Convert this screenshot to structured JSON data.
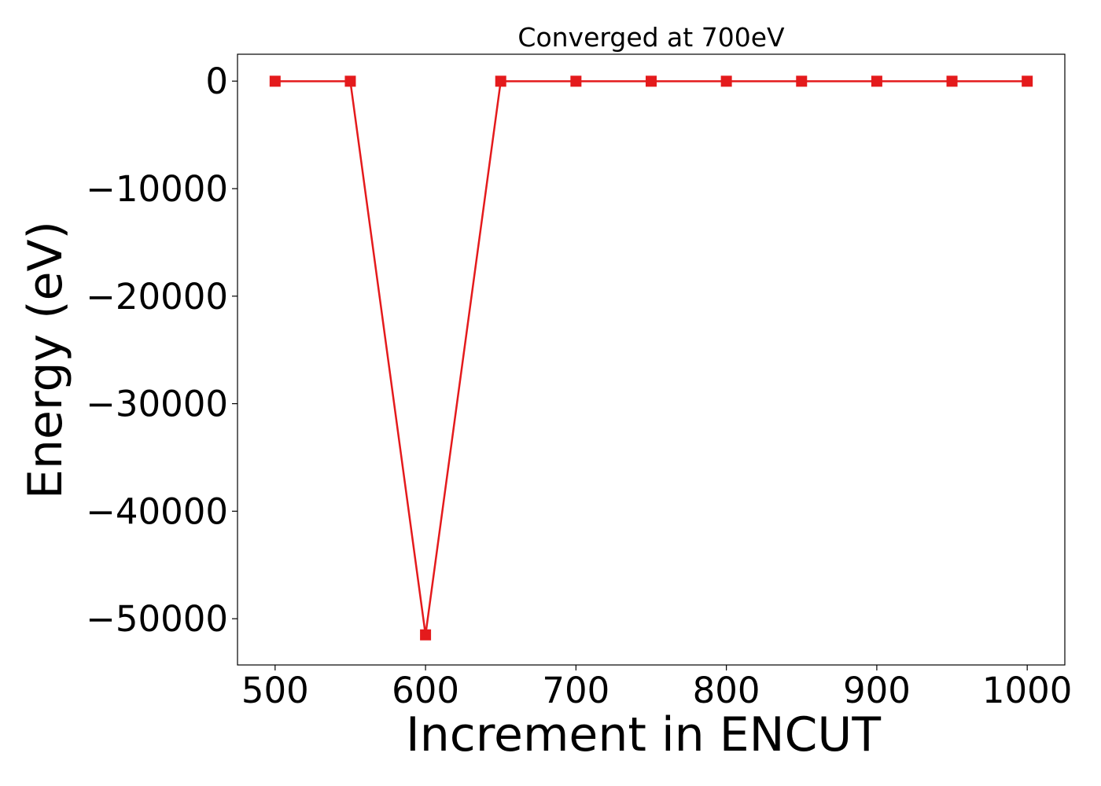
{
  "chart_data": {
    "type": "line",
    "title": "Converged at 700eV",
    "xlabel": "Increment in ENCUT",
    "ylabel": "Energy (eV)",
    "xlim": [
      475,
      1025
    ],
    "ylim": [
      -54300,
      2500
    ],
    "xticks": [
      500,
      600,
      700,
      800,
      900,
      1000
    ],
    "yticks": [
      0,
      -10000,
      -20000,
      -30000,
      -40000,
      -50000
    ],
    "ytick_labels": [
      "0",
      "−10000",
      "−20000",
      "−30000",
      "−40000",
      "−50000"
    ],
    "grid": false,
    "series": [
      {
        "color": "#e41a1c",
        "marker": "square",
        "x": [
          500,
          550,
          600,
          650,
          700,
          750,
          800,
          850,
          900,
          950,
          1000
        ],
        "y": [
          -10,
          -10,
          -51500,
          -10,
          -10,
          -10,
          -10,
          -10,
          -10,
          -10,
          -10
        ]
      }
    ]
  }
}
